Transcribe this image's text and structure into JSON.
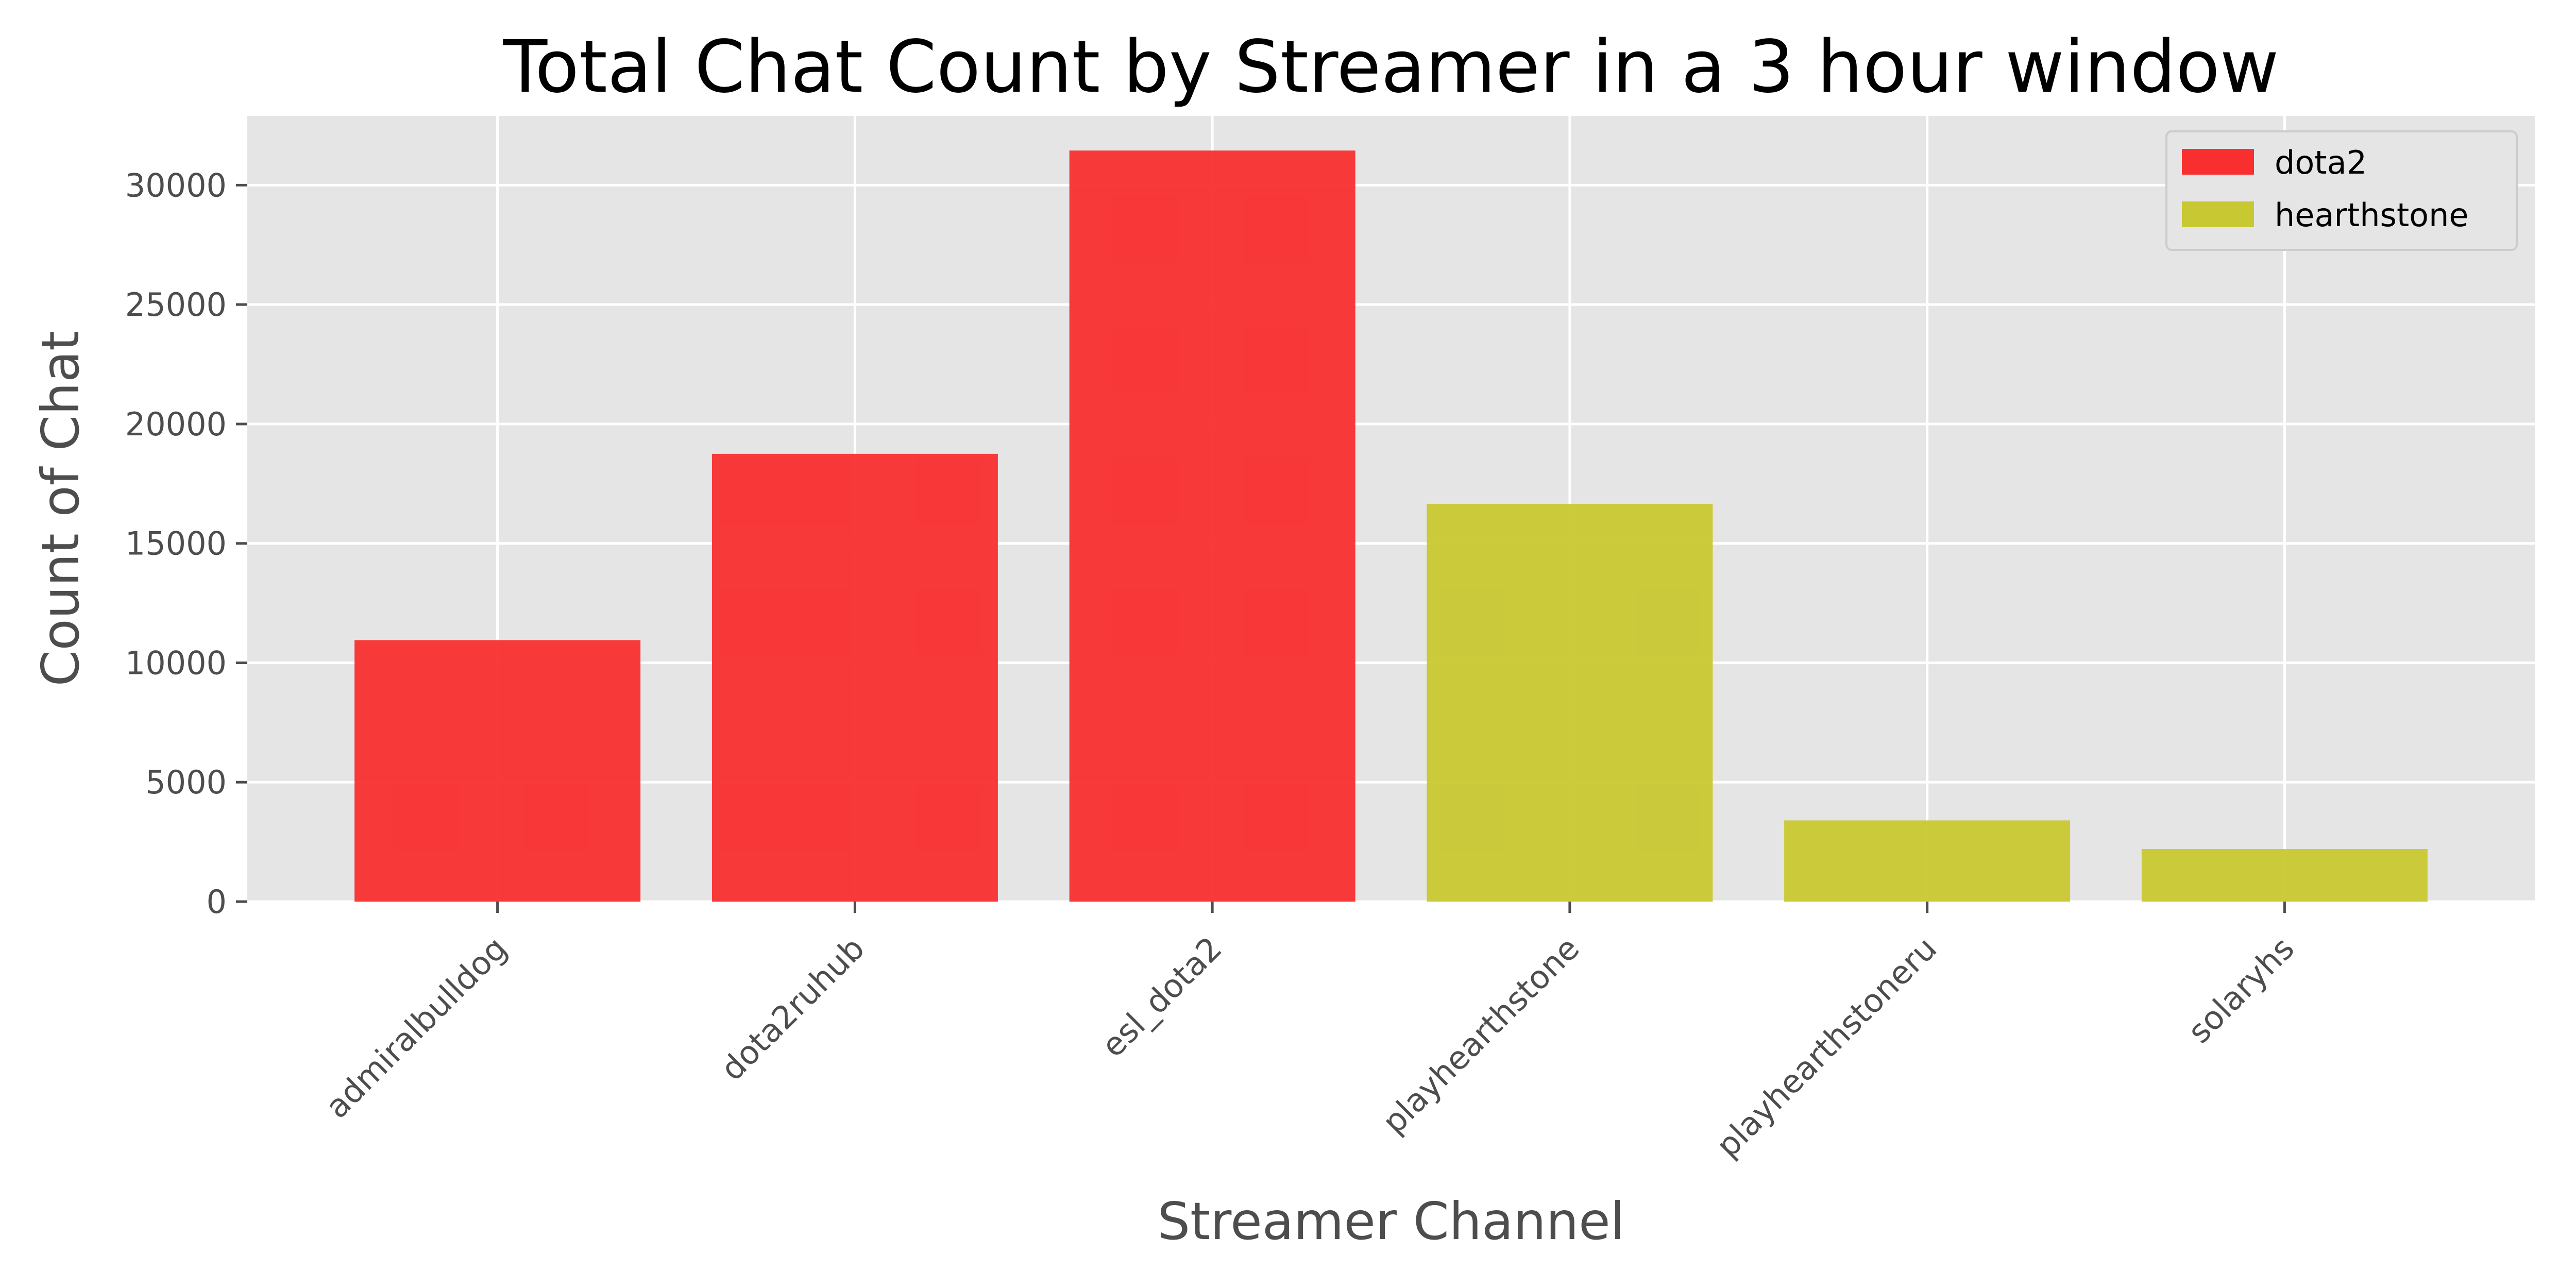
{
  "chart_data": {
    "type": "bar",
    "title": "Total Chat Count by Streamer in a 3 hour window",
    "xlabel": "Streamer Channel",
    "ylabel": "Count of Chat",
    "categories": [
      "admiralbulldog",
      "dota2ruhub",
      "esl_dota2",
      "playhearthstone",
      "playhearthstoneru",
      "solaryhs"
    ],
    "series": [
      {
        "name": "dota2",
        "color": "#f92f2f",
        "values": [
          10950,
          18750,
          31450,
          null,
          null,
          null
        ]
      },
      {
        "name": "hearthstone",
        "color": "#c8c832",
        "values": [
          null,
          null,
          null,
          16650,
          3400,
          2200
        ]
      }
    ],
    "ylim": [
      0,
      32900
    ],
    "yticks": [
      0,
      5000,
      10000,
      15000,
      20000,
      25000,
      30000
    ],
    "grid": true,
    "legend_position": "top-right",
    "background_color": "#e5e5e5"
  }
}
